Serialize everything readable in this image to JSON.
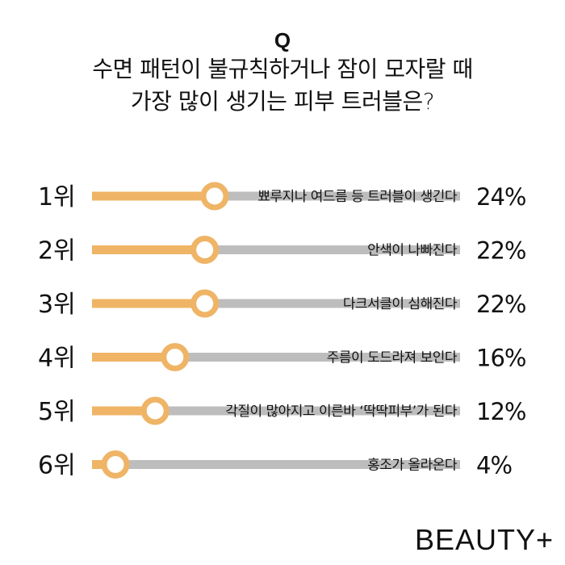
{
  "header": {
    "q_mark": "Q",
    "question_line1": "수면 패턴이 불규칙하거나 잠이 모자랄 때",
    "question_line2": "가장 많이 생기는 피부 트러블은?"
  },
  "brand": {
    "logo_text": "BEAUTY+"
  },
  "colors": {
    "accent": "#EFB466",
    "track": "#BDBDBD",
    "knob_fill": "#FFFFFF"
  },
  "chart_data": {
    "type": "bar",
    "title": "수면 패턴이 불규칙하거나 잠이 모자랄 때 가장 많이 생기는 피부 트러블은?",
    "unit": "%",
    "xlim": [
      0,
      100
    ],
    "items": [
      {
        "rank": "1위",
        "label": "뾰루지나 여드름 등 트러블이 생긴다",
        "value": 24,
        "value_label": "24%"
      },
      {
        "rank": "2위",
        "label": "안색이 나빠진다",
        "value": 22,
        "value_label": "22%"
      },
      {
        "rank": "3위",
        "label": "다크서클이 심해진다",
        "value": 22,
        "value_label": "22%"
      },
      {
        "rank": "4위",
        "label": "주름이 도드라져 보인다",
        "value": 16,
        "value_label": "16%"
      },
      {
        "rank": "5위",
        "label": "각질이 많아지고 이른바 ‘딱딱피부’가 된다",
        "value": 12,
        "value_label": "12%"
      },
      {
        "rank": "6위",
        "label": "홍조가 올라온다",
        "value": 4,
        "value_label": "4%"
      }
    ]
  }
}
